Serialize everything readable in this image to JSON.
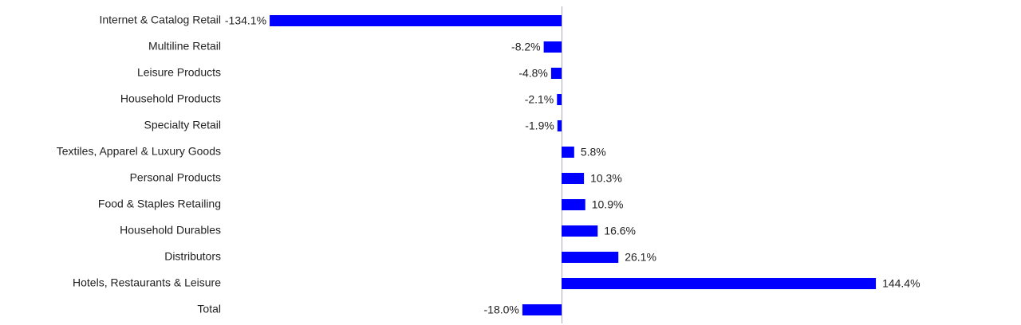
{
  "chart_data": {
    "type": "hbar",
    "categories": [
      "Internet & Catalog Retail",
      "Multiline Retail",
      "Leisure Products",
      "Household Products",
      "Specialty Retail",
      "Textiles, Apparel & Luxury Goods",
      "Personal Products",
      "Food & Staples Retailing",
      "Household Durables",
      "Distributors",
      "Hotels, Restaurants & Leisure",
      "Total"
    ],
    "values": [
      -134.1,
      -8.2,
      -4.8,
      -2.1,
      -1.9,
      5.8,
      10.3,
      10.9,
      16.6,
      26.1,
      144.4,
      -18.0
    ],
    "value_labels": [
      "-134.1%",
      "-8.2%",
      "-4.8%",
      "-2.1%",
      "-1.9%",
      "5.8%",
      "10.3%",
      "10.9%",
      "16.6%",
      "26.1%",
      "144.4%",
      "-18.0%"
    ],
    "color": "#0000ff"
  }
}
